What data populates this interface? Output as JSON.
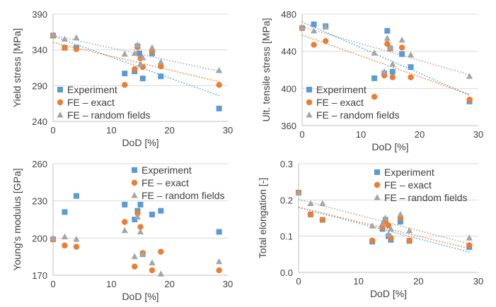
{
  "colors": {
    "Experiment": "#5b9bd5",
    "FE – exact": "#ed7d31",
    "FE – random fields": "#a5a5a5",
    "axis": "#bfbfbf",
    "grid": "#d9d9d9"
  },
  "chart_data": [
    {
      "id": "yield",
      "type": "scatter",
      "xlabel": "DoD [%]",
      "ylabel": "Yield stress [MPa]",
      "xlim": [
        0,
        30
      ],
      "ylim": [
        240,
        390
      ],
      "xticks": [
        "0",
        "10",
        "20",
        "30"
      ],
      "yticks": [
        "240",
        "290",
        "340",
        "390"
      ],
      "legend_position": "bottom-left",
      "series": [
        {
          "name": "Experiment",
          "marker": "square",
          "trend": true,
          "points": [
            [
              0,
              360
            ],
            [
              2,
              343
            ],
            [
              4,
              343
            ],
            [
              12.3,
              307
            ],
            [
              14.5,
              345
            ],
            [
              14.8,
              335
            ],
            [
              15.4,
              300
            ],
            [
              17,
              335
            ],
            [
              18.5,
              303
            ],
            [
              28.5,
              258
            ],
            [
              14,
              310
            ]
          ]
        },
        {
          "name": "FE – exact",
          "marker": "circle",
          "trend": true,
          "points": [
            [
              0,
              360
            ],
            [
              2,
              343
            ],
            [
              4,
              341
            ],
            [
              12.3,
              291
            ],
            [
              14,
              313
            ],
            [
              14.5,
              344
            ],
            [
              15,
              328
            ],
            [
              15.4,
              316
            ],
            [
              17,
              338
            ],
            [
              18.5,
              317
            ],
            [
              28.5,
              291
            ]
          ]
        },
        {
          "name": "FE – random fields",
          "marker": "triangle",
          "trend": true,
          "points": [
            [
              0,
              361
            ],
            [
              2,
              355
            ],
            [
              4,
              357
            ],
            [
              12.3,
              334
            ],
            [
              14,
              335
            ],
            [
              14.5,
              347
            ],
            [
              15,
              320
            ],
            [
              15.4,
              329
            ],
            [
              17,
              343
            ],
            [
              18.5,
              323
            ],
            [
              28.5,
              311
            ]
          ]
        }
      ]
    },
    {
      "id": "uts",
      "type": "scatter",
      "xlabel": "DoD [%]",
      "ylabel": "Ult. tensile stress [MPa]",
      "xlim": [
        0,
        30
      ],
      "ylim": [
        360,
        480
      ],
      "xticks": [
        "0",
        "10",
        "20",
        "30"
      ],
      "yticks": [
        "360",
        "400",
        "440",
        "480"
      ],
      "legend_position": "bottom-left",
      "series": [
        {
          "name": "Experiment",
          "marker": "square",
          "trend": true,
          "points": [
            [
              0,
              465
            ],
            [
              2,
              469
            ],
            [
              4,
              467
            ],
            [
              12.3,
              411
            ],
            [
              14,
              416
            ],
            [
              14.5,
              462
            ],
            [
              15,
              443
            ],
            [
              15.4,
              418
            ],
            [
              17,
              437
            ],
            [
              18.5,
              423
            ],
            [
              28.5,
              386
            ]
          ]
        },
        {
          "name": "FE – exact",
          "marker": "circle",
          "trend": true,
          "points": [
            [
              0,
              465
            ],
            [
              2,
              447
            ],
            [
              4,
              451
            ],
            [
              12.3,
              391
            ],
            [
              14,
              414
            ],
            [
              14.5,
              448
            ],
            [
              15,
              443
            ],
            [
              15.4,
              412
            ],
            [
              17,
              444
            ],
            [
              18.5,
              412
            ],
            [
              28.5,
              388
            ]
          ]
        },
        {
          "name": "FE – random fields",
          "marker": "triangle",
          "trend": true,
          "points": [
            [
              0,
              465
            ],
            [
              2,
              462
            ],
            [
              4,
              466
            ],
            [
              12.3,
              438
            ],
            [
              14,
              418
            ],
            [
              14.5,
              454
            ],
            [
              15,
              444
            ],
            [
              15.4,
              426
            ],
            [
              17,
              452
            ],
            [
              18.5,
              436
            ],
            [
              28.5,
              413
            ]
          ]
        }
      ]
    },
    {
      "id": "young",
      "type": "scatter",
      "xlabel": "DoD [%]",
      "ylabel": "Young's modulus [GPa]",
      "xlim": [
        0,
        30
      ],
      "ylim": [
        170,
        260
      ],
      "xticks": [
        "0",
        "10",
        "20",
        "30"
      ],
      "yticks": [
        "170",
        "200",
        "230",
        "260"
      ],
      "legend_position": "top-right",
      "series": [
        {
          "name": "Experiment",
          "marker": "square",
          "trend": false,
          "points": [
            [
              0,
              199
            ],
            [
              2,
              221
            ],
            [
              4,
              234
            ],
            [
              12.3,
              227
            ],
            [
              14,
              215
            ],
            [
              14.5,
              222
            ],
            [
              15,
              227
            ],
            [
              15.4,
              187
            ],
            [
              17,
              219
            ],
            [
              18.5,
              222
            ],
            [
              28.5,
              205
            ]
          ]
        },
        {
          "name": "FE – exact",
          "marker": "circle",
          "trend": false,
          "points": [
            [
              0,
              199
            ],
            [
              2,
              194
            ],
            [
              4,
              193
            ],
            [
              12.3,
              213
            ],
            [
              14,
              177
            ],
            [
              14.5,
              220
            ],
            [
              15,
              209
            ],
            [
              15.4,
              188
            ],
            [
              17,
              174
            ],
            [
              18.5,
              189
            ],
            [
              28.5,
              174
            ]
          ]
        },
        {
          "name": "FE – random fields",
          "marker": "triangle",
          "trend": false,
          "points": [
            [
              0,
              200
            ],
            [
              2,
              201
            ],
            [
              4,
              199
            ],
            [
              12.3,
              206
            ],
            [
              14,
              185
            ],
            [
              14.5,
              217
            ],
            [
              15,
              205
            ],
            [
              15.4,
              187
            ],
            [
              17,
              180
            ],
            [
              18.5,
              171
            ],
            [
              28.5,
              181
            ]
          ]
        }
      ]
    },
    {
      "id": "elong",
      "type": "scatter",
      "xlabel": "DoD [%]",
      "ylabel": "Total elongation [-]",
      "xlim": [
        0,
        30
      ],
      "ylim": [
        0.0,
        0.3
      ],
      "xticks": [
        "0",
        "10",
        "20",
        "30"
      ],
      "yticks": [
        "0.0",
        "0.1",
        "0.2",
        "0.3"
      ],
      "legend_position": "top-right",
      "series": [
        {
          "name": "Experiment",
          "marker": "square",
          "trend": true,
          "points": [
            [
              0,
              0.22
            ],
            [
              2,
              0.16
            ],
            [
              4,
              0.145
            ],
            [
              12.3,
              0.085
            ],
            [
              14,
              0.12
            ],
            [
              14.5,
              0.145
            ],
            [
              15,
              0.1
            ],
            [
              15.4,
              0.09
            ],
            [
              17,
              0.14
            ],
            [
              18.5,
              0.087
            ],
            [
              28.5,
              0.07
            ]
          ]
        },
        {
          "name": "FE – exact",
          "marker": "circle",
          "trend": true,
          "points": [
            [
              0,
              0.22
            ],
            [
              2,
              0.16
            ],
            [
              4,
              0.145
            ],
            [
              12.3,
              0.088
            ],
            [
              14,
              0.125
            ],
            [
              14.5,
              0.14
            ],
            [
              15,
              0.13
            ],
            [
              15.4,
              0.095
            ],
            [
              17,
              0.15
            ],
            [
              18.5,
              0.088
            ],
            [
              28.5,
              0.075
            ]
          ]
        },
        {
          "name": "FE – random fields",
          "marker": "triangle",
          "trend": true,
          "points": [
            [
              0,
              0.22
            ],
            [
              2,
              0.19
            ],
            [
              4,
              0.19
            ],
            [
              12.3,
              0.128
            ],
            [
              14,
              0.135
            ],
            [
              14.5,
              0.15
            ],
            [
              15,
              0.105
            ],
            [
              15.4,
              0.12
            ],
            [
              17,
              0.16
            ],
            [
              18.5,
              0.115
            ],
            [
              28.5,
              0.095
            ]
          ]
        }
      ]
    }
  ]
}
